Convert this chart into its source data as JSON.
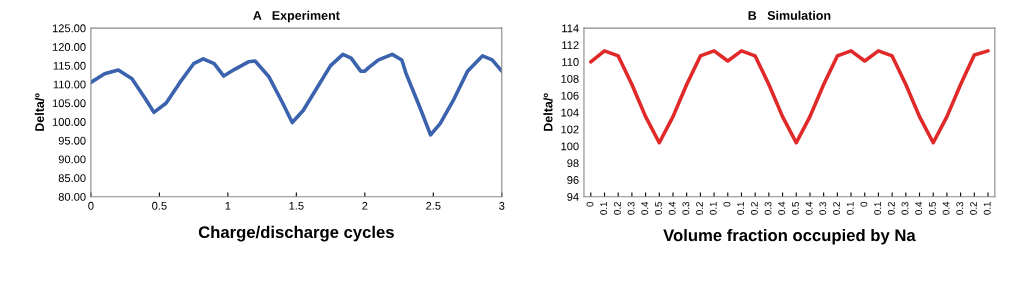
{
  "chart_data": [
    {
      "type": "line",
      "title": "A   Experiment",
      "xlabel": "Charge/discharge cycles",
      "ylabel": "Delta/º",
      "xlim": [
        0,
        3
      ],
      "xticks": [
        0,
        0.5,
        1,
        1.5,
        2,
        2.5,
        3
      ],
      "ylim": [
        80,
        125
      ],
      "yticks": [
        {
          "value": 80,
          "label": "80.00"
        },
        {
          "value": 85,
          "label": "85.00"
        },
        {
          "value": 90,
          "label": "90.00"
        },
        {
          "value": 95,
          "label": "95.00"
        },
        {
          "value": 100,
          "label": "100.00"
        },
        {
          "value": 105,
          "label": "105.00"
        },
        {
          "value": 110,
          "label": "110.00"
        },
        {
          "value": 115,
          "label": "115.00"
        },
        {
          "value": 120,
          "label": "120.00"
        },
        {
          "value": 125,
          "label": "125.00"
        }
      ],
      "grid": false,
      "legend": false,
      "series": [
        {
          "color": "#3a62ad",
          "x": [
            0,
            0.1,
            0.2,
            0.3,
            0.4,
            0.46,
            0.55,
            0.65,
            0.75,
            0.82,
            0.9,
            0.97,
            1.05,
            1.15,
            1.2,
            1.3,
            1.4,
            1.47,
            1.55,
            1.65,
            1.75,
            1.84,
            1.9,
            1.97,
            2.0,
            2.03,
            2.1,
            2.2,
            2.27,
            2.3,
            2.4,
            2.48,
            2.55,
            2.65,
            2.75,
            2.86,
            2.93,
            3.0
          ],
          "values": [
            110.5,
            112.8,
            113.8,
            111.5,
            106,
            102.5,
            105,
            110.5,
            115.5,
            116.8,
            115.5,
            112.2,
            114,
            116,
            116.2,
            112,
            105,
            99.8,
            103,
            109,
            115,
            118,
            117,
            113.5,
            113.5,
            114.5,
            116.5,
            118,
            116.5,
            113,
            104,
            96.5,
            99.5,
            106,
            113.5,
            117.6,
            116.5,
            113.5
          ]
        }
      ]
    },
    {
      "type": "line",
      "title": "B   Simulation",
      "xlabel": "Volume fraction occupied by Na",
      "ylabel": "Delta/º",
      "ylim": [
        94,
        114
      ],
      "yticks": [
        94,
        96,
        98,
        100,
        102,
        104,
        106,
        108,
        110,
        112,
        114
      ],
      "grid": false,
      "legend": false,
      "categories": [
        "0",
        "0.1",
        "0.2",
        "0.3",
        "0.4",
        "0.5",
        "0.4",
        "0.3",
        "0.2",
        "0.1",
        "0",
        "0.1",
        "0.2",
        "0.3",
        "0.4",
        "0.5",
        "0.4",
        "0.3",
        "0.2",
        "0.1",
        "0",
        "0.1",
        "0.2",
        "0.3",
        "0.4",
        "0.5",
        "0.4",
        "0.3",
        "0.2",
        "0.1"
      ],
      "series": [
        {
          "color": "#e02a2a",
          "values": [
            110.0,
            111.3,
            110.7,
            107.3,
            103.5,
            100.4,
            103.5,
            107.3,
            110.7,
            111.3,
            110.1,
            111.3,
            110.7,
            107.3,
            103.5,
            100.4,
            103.5,
            107.3,
            110.7,
            111.3,
            110.1,
            111.3,
            110.7,
            107.3,
            103.5,
            100.4,
            103.5,
            107.3,
            110.8,
            111.3
          ]
        }
      ]
    }
  ]
}
